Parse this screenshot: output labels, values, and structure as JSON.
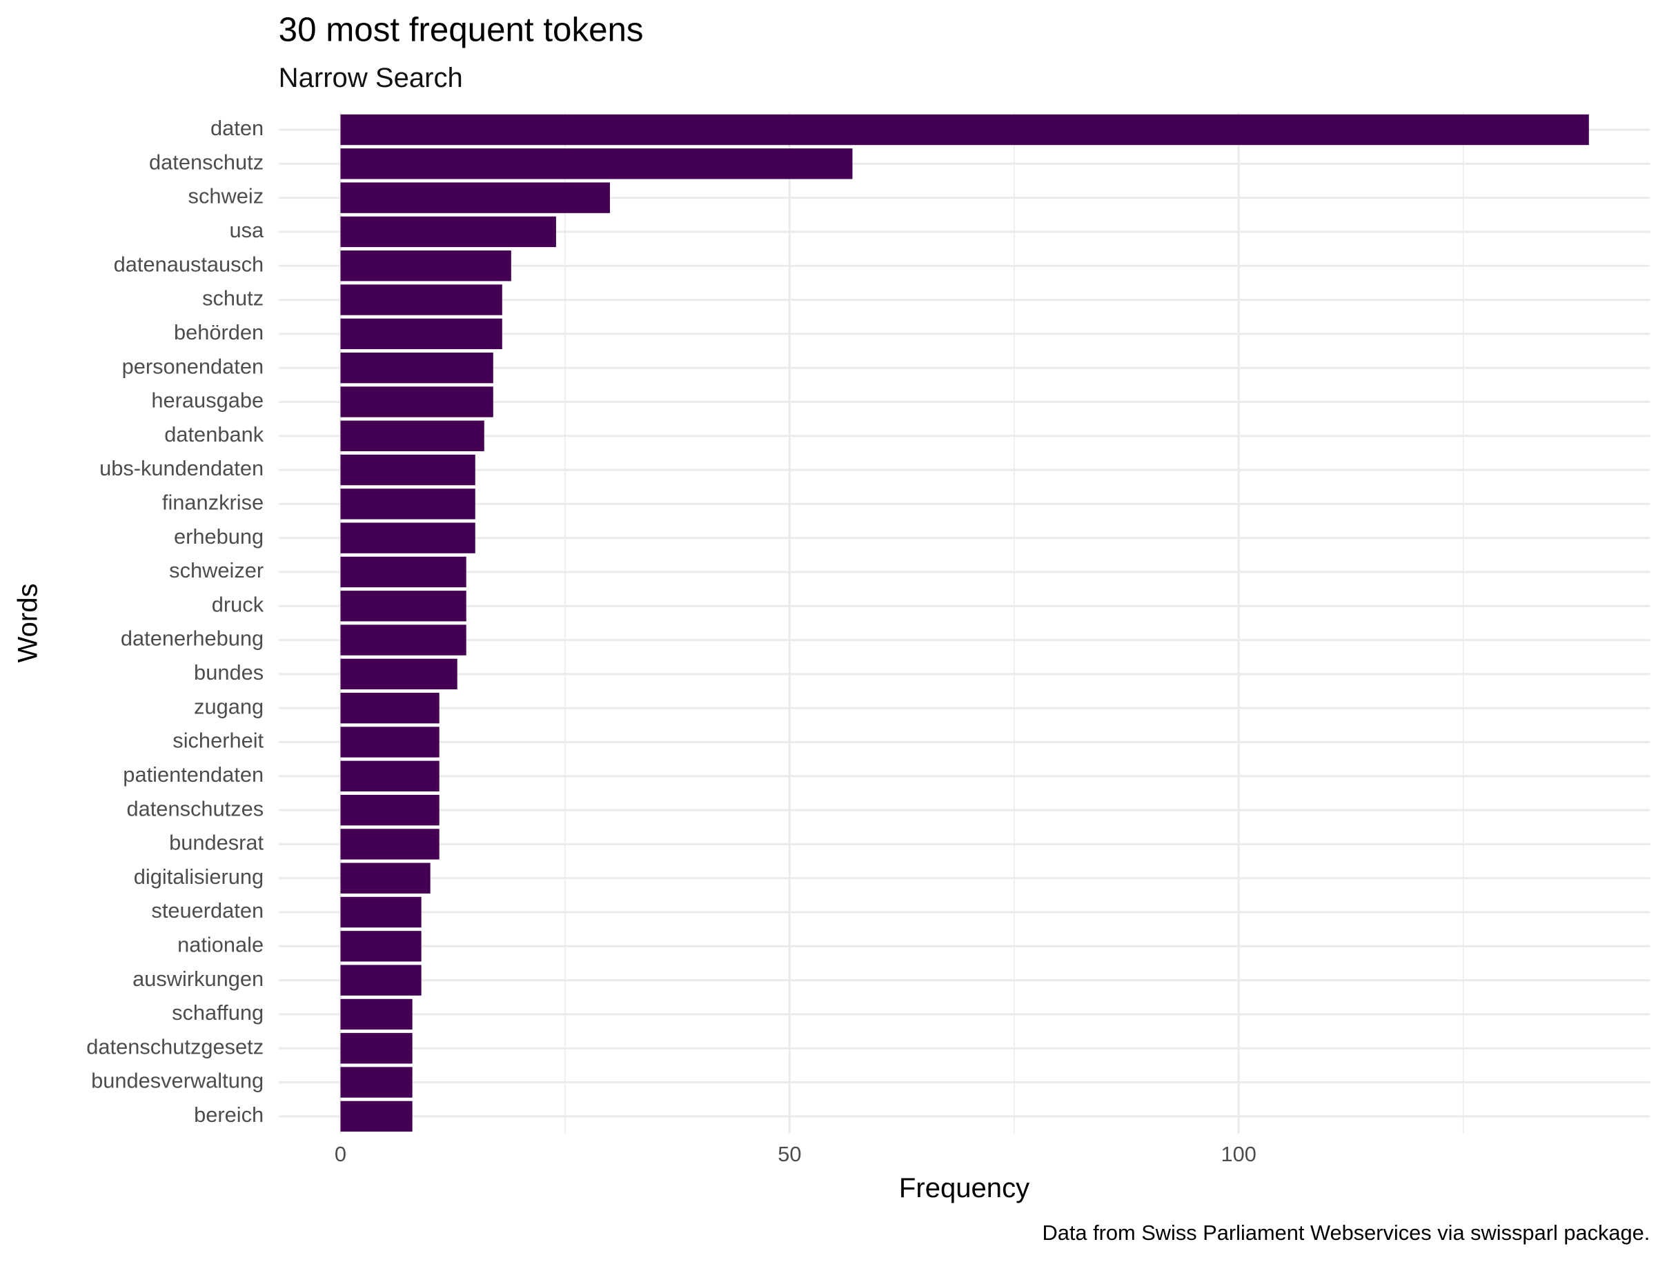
{
  "chart_data": {
    "type": "barh",
    "title": "30 most frequent tokens",
    "subtitle": "Narrow Search",
    "x_label": "Frequency",
    "y_label": "Words",
    "caption": "Data from Swiss Parliament Webservices via swissparl package.",
    "categories": [
      "daten",
      "datenschutz",
      "schweiz",
      "usa",
      "datenaustausch",
      "schutz",
      "behörden",
      "personendaten",
      "herausgabe",
      "datenbank",
      "ubs-kundendaten",
      "finanzkrise",
      "erhebung",
      "schweizer",
      "druck",
      "datenerhebung",
      "bundes",
      "zugang",
      "sicherheit",
      "patientendaten",
      "datenschutzes",
      "bundesrat",
      "digitalisierung",
      "steuerdaten",
      "nationale",
      "auswirkungen",
      "schaffung",
      "datenschutzgesetz",
      "bundesverwaltung",
      "bereich"
    ],
    "values": [
      139,
      57,
      30,
      24,
      19,
      18,
      18,
      17,
      17,
      16,
      15,
      15,
      15,
      14,
      14,
      14,
      13,
      11,
      11,
      11,
      11,
      11,
      10,
      9,
      9,
      9,
      8,
      8,
      8,
      8
    ],
    "color": "#440154",
    "xlim": [
      -6.9,
      145.8
    ],
    "xticks": [
      0,
      50,
      100
    ],
    "xminor": [
      25,
      75,
      125
    ],
    "grid": true
  }
}
